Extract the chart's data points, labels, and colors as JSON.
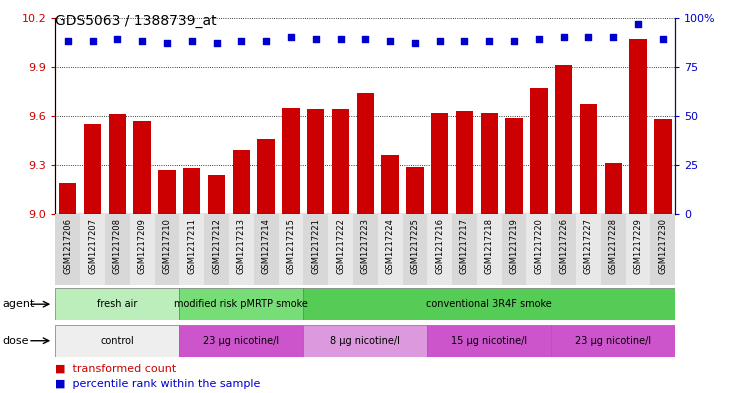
{
  "title": "GDS5063 / 1388739_at",
  "samples": [
    "GSM1217206",
    "GSM1217207",
    "GSM1217208",
    "GSM1217209",
    "GSM1217210",
    "GSM1217211",
    "GSM1217212",
    "GSM1217213",
    "GSM1217214",
    "GSM1217215",
    "GSM1217221",
    "GSM1217222",
    "GSM1217223",
    "GSM1217224",
    "GSM1217225",
    "GSM1217216",
    "GSM1217217",
    "GSM1217218",
    "GSM1217219",
    "GSM1217220",
    "GSM1217226",
    "GSM1217227",
    "GSM1217228",
    "GSM1217229",
    "GSM1217230"
  ],
  "bar_values": [
    9.19,
    9.55,
    9.61,
    9.57,
    9.27,
    9.28,
    9.24,
    9.39,
    9.46,
    9.65,
    9.64,
    9.64,
    9.74,
    9.36,
    9.29,
    9.62,
    9.63,
    9.62,
    9.59,
    9.77,
    9.91,
    9.67,
    9.31,
    10.07,
    9.58
  ],
  "percentile_values": [
    88,
    88,
    89,
    88,
    87,
    88,
    87,
    88,
    88,
    90,
    89,
    89,
    89,
    88,
    87,
    88,
    88,
    88,
    88,
    89,
    90,
    90,
    90,
    97,
    89
  ],
  "bar_color": "#cc0000",
  "percentile_color": "#0000cc",
  "ylim_left": [
    9.0,
    10.2
  ],
  "ylim_right": [
    0,
    100
  ],
  "yticks_left": [
    9.0,
    9.3,
    9.6,
    9.9,
    10.2
  ],
  "yticks_right": [
    0,
    25,
    50,
    75,
    100
  ],
  "agent_groups": [
    {
      "label": "fresh air",
      "start": 0,
      "end": 5,
      "color": "#bbeebb"
    },
    {
      "label": "modified risk pMRTP smoke",
      "start": 5,
      "end": 10,
      "color": "#77dd77"
    },
    {
      "label": "conventional 3R4F smoke",
      "start": 10,
      "end": 25,
      "color": "#55cc55"
    }
  ],
  "dose_groups": [
    {
      "label": "control",
      "start": 0,
      "end": 5,
      "color": "#eeeeee"
    },
    {
      "label": "23 μg nicotine/l",
      "start": 5,
      "end": 10,
      "color": "#cc55cc"
    },
    {
      "label": "8 μg nicotine/l",
      "start": 10,
      "end": 15,
      "color": "#dd99dd"
    },
    {
      "label": "15 μg nicotine/l",
      "start": 15,
      "end": 20,
      "color": "#cc55cc"
    },
    {
      "label": "23 μg nicotine/l",
      "start": 20,
      "end": 25,
      "color": "#cc55cc"
    }
  ],
  "legend_bar_label": "transformed count",
  "legend_pct_label": "percentile rank within the sample",
  "agent_label": "agent",
  "dose_label": "dose",
  "xtick_bg_colors": [
    "#d8d8d8",
    "#e8e8e8"
  ]
}
